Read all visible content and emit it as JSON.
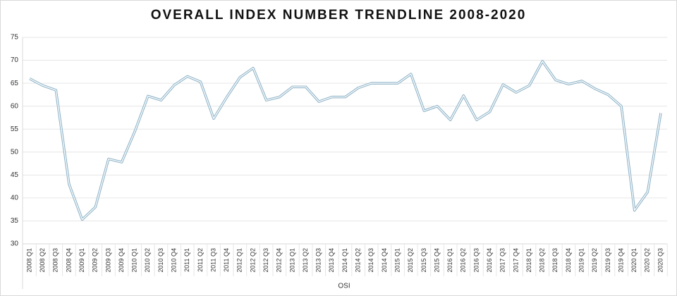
{
  "chart_data": {
    "type": "line",
    "title": "OVERALL INDEX NUMBER TRENDLINE 2008-2020",
    "x_label": "OSI",
    "categories": [
      "2008 Q1",
      "2008 Q2",
      "2008 Q3",
      "2008 Q4",
      "2009 Q1",
      "2009 Q2",
      "2009 Q3",
      "2009 Q4",
      "2010 Q1",
      "2010 Q2",
      "2010 Q3",
      "2010 Q4",
      "2011 Q1",
      "2011 Q2",
      "2011 Q3",
      "2011 Q4",
      "2012 Q1",
      "2012 Q2",
      "2012 Q3",
      "2012 Q4",
      "2013 Q1",
      "2013 Q2",
      "2013 Q3",
      "2013 Q4",
      "2014 Q1",
      "2014 Q2",
      "2014 Q3",
      "2014 Q4",
      "2015 Q1",
      "2015 Q2",
      "2015 Q3",
      "2015 Q4",
      "2016 Q1",
      "2016 Q2",
      "2016 Q3",
      "2016 Q4",
      "2017 Q3",
      "2017 Q4",
      "2018 Q1",
      "2018 Q2",
      "2018 Q3",
      "2018 Q4",
      "2019 Q1",
      "2019 Q2",
      "2019 Q3",
      "2019 Q4",
      "2020 Q1",
      "2020 Q2",
      "2020 Q3"
    ],
    "values": [
      66,
      64.5,
      63.5,
      43,
      35.3,
      38,
      48.5,
      47.8,
      54.5,
      62.2,
      61.3,
      64.6,
      66.5,
      65.3,
      57.3,
      62,
      66.3,
      68.3,
      61.3,
      62,
      64.2,
      64.2,
      61,
      62,
      62,
      64,
      65,
      65,
      65,
      67,
      59,
      60,
      57,
      62.3,
      57,
      58.8,
      64.7,
      63,
      64.5,
      69.8,
      65.7,
      64.8,
      65.5,
      63.8,
      62.5,
      60,
      37.3,
      41.3,
      58.5
    ],
    "color": "#8fb4c8",
    "ylim": [
      30,
      75
    ],
    "yticks": [
      30,
      35,
      40,
      45,
      50,
      55,
      60,
      65,
      70,
      75
    ],
    "grid": true
  }
}
